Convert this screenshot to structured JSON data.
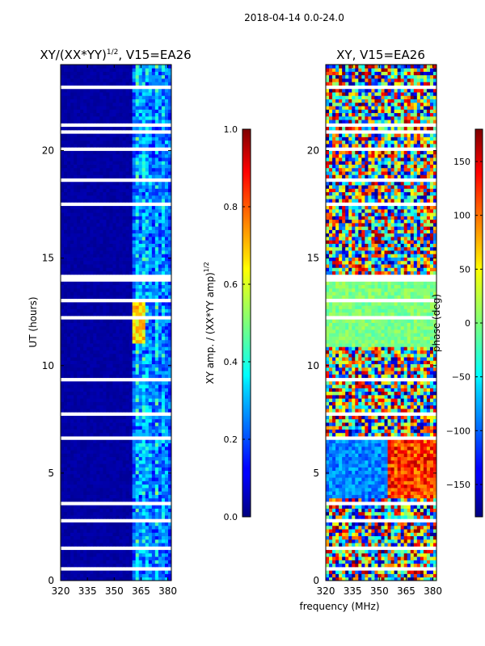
{
  "figure": {
    "suptitle": "2018-04-14 0.0-24.0",
    "shared_xlabel": "frequency (MHz)"
  },
  "chart_data": [
    {
      "type": "heatmap",
      "title": "XY/(XX*YY)",
      "title_superscript": "1/2",
      "title_suffix": ", V15=EA26",
      "xlabel": "",
      "ylabel": "UT (hours)",
      "xlim": [
        320,
        382
      ],
      "ylim": [
        0,
        24
      ],
      "xticks": [
        320,
        335,
        350,
        365,
        380
      ],
      "yticks": [
        0,
        5,
        10,
        15,
        20
      ],
      "colormap": "jet",
      "colorbar": {
        "label": "XY amp. / (XX*YY amp)",
        "label_superscript": "1/2",
        "range": [
          0.0,
          1.0
        ],
        "ticks": [
          "0.0",
          "0.2",
          "0.4",
          "0.6",
          "0.8",
          "1.0"
        ]
      },
      "description": "Mostly low normalized amplitude (dark blue) below ~361 MHz; bright channels (0.3-0.7) between ~362-381 MHz; horizontal white gaps of flagged time."
    },
    {
      "type": "heatmap",
      "title": "XY, V15=EA26",
      "xlabel": "",
      "ylabel": "",
      "xlim": [
        320,
        382
      ],
      "ylim": [
        0,
        24
      ],
      "xticks": [
        320,
        335,
        350,
        365,
        380
      ],
      "yticks": [
        0,
        5,
        10,
        15,
        20
      ],
      "colormap": "jet",
      "colorbar": {
        "label": "phase (deg)",
        "range": [
          -180,
          180
        ],
        "ticks": [
          "-150",
          "-100",
          "-50",
          "0",
          "50",
          "100",
          "150"
        ]
      },
      "description": "Noisy XY phase; ~10.7-14 h mostly near 0 deg (green-cyan); ~3.8-6.8 h blue at low frequencies and red/orange at high frequencies; horizontal white flagged gaps."
    }
  ]
}
